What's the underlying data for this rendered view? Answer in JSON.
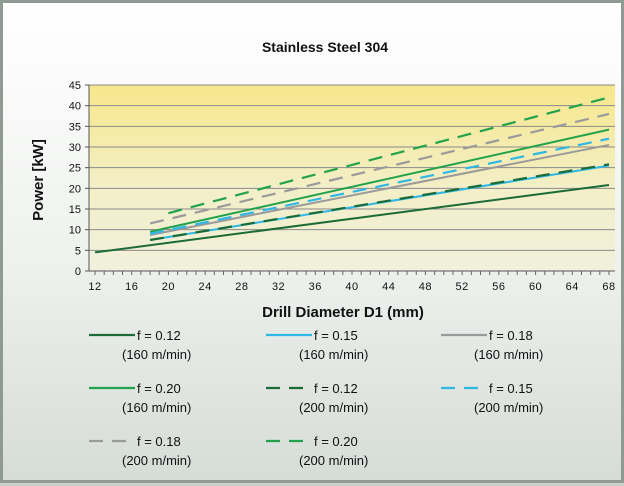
{
  "chart_data": {
    "type": "line",
    "title": "Stainless Steel 304",
    "xlabel": "Drill Diameter D1 (mm)",
    "ylabel": "Power [kW]",
    "xlim": [
      12,
      68
    ],
    "ylim": [
      0,
      45
    ],
    "xticks": [
      12,
      16,
      20,
      24,
      28,
      32,
      36,
      40,
      44,
      48,
      52,
      56,
      60,
      64,
      68
    ],
    "yticks": [
      0,
      5,
      10,
      15,
      20,
      25,
      30,
      35,
      40,
      45
    ],
    "grid": "horizontal",
    "legend_position": "bottom",
    "plot_background": "yellow-gradient",
    "series": [
      {
        "name": "f = 0.12",
        "sub": "(160 m/min)",
        "color": "#1b6b37",
        "dash": false,
        "x": [
          12,
          68
        ],
        "y": [
          4.5,
          20.8
        ]
      },
      {
        "name": "f = 0.15",
        "sub": "(160 m/min)",
        "color": "#2fb8e6",
        "dash": false,
        "x": [
          18,
          68
        ],
        "y": [
          7.5,
          25.5
        ]
      },
      {
        "name": "f = 0.18",
        "sub": "(160 m/min)",
        "color": "#9a9a9a",
        "dash": false,
        "x": [
          18,
          68
        ],
        "y": [
          8.7,
          30.5
        ]
      },
      {
        "name": "f = 0.20",
        "sub": "(160 m/min)",
        "color": "#22a24a",
        "dash": false,
        "x": [
          18,
          68
        ],
        "y": [
          9.5,
          34.2
        ]
      },
      {
        "name": "f = 0.12",
        "sub": "(200 m/min)",
        "color": "#1b6b37",
        "dash": true,
        "x": [
          18,
          68
        ],
        "y": [
          7.5,
          25.8
        ]
      },
      {
        "name": "f = 0.15",
        "sub": "(200 m/min)",
        "color": "#2fb8e6",
        "dash": true,
        "x": [
          18,
          68
        ],
        "y": [
          9.0,
          32.0
        ]
      },
      {
        "name": "f = 0.18",
        "sub": "(200 m/min)",
        "color": "#9a9a9a",
        "dash": true,
        "x": [
          18,
          68
        ],
        "y": [
          11.5,
          38.0
        ]
      },
      {
        "name": "f = 0.20",
        "sub": "(200 m/min)",
        "color": "#22a24a",
        "dash": true,
        "x": [
          20,
          68
        ],
        "y": [
          14.0,
          42.0
        ]
      }
    ]
  }
}
